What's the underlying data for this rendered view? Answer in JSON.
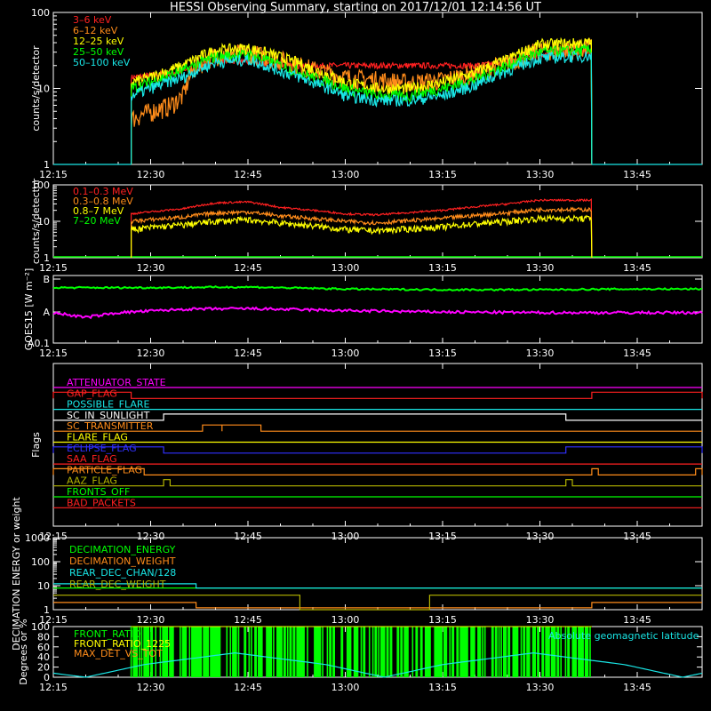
{
  "title": "HESSI Observing Summary, starting on 2017/12/01 12:14:56 UT",
  "colors": {
    "red": "#ff2020",
    "orange": "#ff8c1a",
    "yellow": "#ffff00",
    "green": "#00ff00",
    "cyan": "#19e6e6",
    "magenta": "#ff00ff",
    "blue": "#3030ff",
    "olive": "#b4b400",
    "white": "#ffffff"
  },
  "time_axis": {
    "start": "12:15",
    "end": "13:55",
    "ticks": [
      "12:15",
      "12:30",
      "12:45",
      "13:00",
      "13:15",
      "13:30",
      "13:45"
    ]
  },
  "chart_data": [
    {
      "type": "line",
      "ylabel": "counts/s/detector",
      "yscale": "log",
      "ylim": [
        1,
        100
      ],
      "yticks": [
        "1",
        "10",
        "100"
      ],
      "legend_placement": "top-left",
      "data_start": "12:27",
      "data_end": "13:38",
      "series": [
        {
          "name": "3–6 keV",
          "color": "red",
          "x": [
            "12:27",
            "12:33",
            "12:37",
            "12:40",
            "12:45",
            "12:50",
            "13:00",
            "13:15",
            "13:20",
            "13:25",
            "13:30",
            "13:38"
          ],
          "y": [
            14,
            16,
            18,
            24,
            22,
            20,
            20,
            20,
            20,
            22,
            28,
            30
          ]
        },
        {
          "name": "6–12 keV",
          "color": "orange",
          "x": [
            "12:27",
            "12:30",
            "12:33",
            "12:35",
            "12:37",
            "12:40",
            "12:45",
            "12:50",
            "12:55",
            "13:00",
            "13:10",
            "13:15",
            "13:20",
            "13:25",
            "13:30",
            "13:38"
          ],
          "y": [
            4,
            5,
            6,
            8,
            20,
            28,
            30,
            24,
            18,
            14,
            12,
            13,
            16,
            22,
            32,
            35
          ]
        },
        {
          "name": "12–25 keV",
          "color": "yellow",
          "x": [
            "12:27",
            "12:30",
            "12:35",
            "12:40",
            "12:45",
            "12:50",
            "12:55",
            "13:00",
            "13:05",
            "13:10",
            "13:15",
            "13:20",
            "13:25",
            "13:30",
            "13:38"
          ],
          "y": [
            12,
            14,
            20,
            32,
            34,
            26,
            18,
            12,
            10,
            10,
            12,
            16,
            24,
            38,
            40
          ]
        },
        {
          "name": "25–50 keV",
          "color": "green",
          "x": [
            "12:27",
            "12:30",
            "12:35",
            "12:40",
            "12:45",
            "12:50",
            "12:55",
            "13:00",
            "13:05",
            "13:10",
            "13:15",
            "13:20",
            "13:25",
            "13:30",
            "13:38"
          ],
          "y": [
            10,
            12,
            17,
            26,
            28,
            20,
            14,
            10,
            8,
            8,
            10,
            13,
            20,
            30,
            32
          ]
        },
        {
          "name": "50–100 keV",
          "color": "cyan",
          "x": [
            "12:27",
            "12:30",
            "12:35",
            "12:40",
            "12:45",
            "12:50",
            "12:55",
            "13:00",
            "13:05",
            "13:10",
            "13:15",
            "13:20",
            "13:25",
            "13:30",
            "13:38"
          ],
          "y": [
            8,
            10,
            14,
            22,
            24,
            17,
            12,
            8,
            7,
            7,
            8,
            11,
            17,
            25,
            27
          ]
        }
      ]
    },
    {
      "type": "line",
      "ylabel": "counts/s/detector",
      "yscale": "log",
      "ylim": [
        1,
        100
      ],
      "yticks": [
        "1",
        "10",
        "100"
      ],
      "legend_placement": "top-left",
      "data_start": "12:27",
      "data_end": "13:38",
      "series": [
        {
          "name": "0.1–0.3 MeV",
          "color": "red",
          "x": [
            "12:27",
            "12:35",
            "12:40",
            "12:45",
            "12:50",
            "13:00",
            "13:05",
            "13:15",
            "13:25",
            "13:30",
            "13:38"
          ],
          "y": [
            16,
            22,
            32,
            34,
            24,
            16,
            15,
            20,
            30,
            38,
            38
          ]
        },
        {
          "name": "0.3–0.8 MeV",
          "color": "orange",
          "x": [
            "12:27",
            "12:35",
            "12:40",
            "12:45",
            "12:50",
            "13:00",
            "13:05",
            "13:15",
            "13:25",
            "13:30",
            "13:38"
          ],
          "y": [
            10,
            13,
            17,
            18,
            14,
            10,
            9,
            12,
            17,
            21,
            21
          ]
        },
        {
          "name": "0.8–7 MeV",
          "color": "yellow",
          "x": [
            "12:27",
            "12:35",
            "12:40",
            "12:45",
            "12:50",
            "13:00",
            "13:05",
            "13:15",
            "13:25",
            "13:30",
            "13:38"
          ],
          "y": [
            6,
            8,
            10,
            11,
            9,
            6,
            5.5,
            7,
            10,
            12,
            12
          ]
        },
        {
          "name": "7–20 MeV",
          "color": "green",
          "x": [
            "12:15",
            "13:55"
          ],
          "y": [
            1,
            1
          ]
        }
      ]
    },
    {
      "type": "line",
      "ylabel": "GOES15 [W m⁻²]",
      "yscale": "log",
      "yticks": [
        "A0.1",
        "A",
        "B"
      ],
      "series": [
        {
          "name": "GOES long",
          "color": "green",
          "x": [
            "12:15",
            "12:30",
            "12:45",
            "13:00",
            "13:15",
            "13:30",
            "13:45",
            "13:55"
          ],
          "y": [
            0.82,
            0.82,
            0.83,
            0.8,
            0.79,
            0.79,
            0.8,
            0.8
          ]
        },
        {
          "name": "GOES short",
          "color": "magenta",
          "x": [
            "12:15",
            "12:20",
            "12:25",
            "12:35",
            "12:45",
            "13:00",
            "13:15",
            "13:30",
            "13:45",
            "13:55"
          ],
          "y": [
            0.45,
            0.38,
            0.45,
            0.5,
            0.51,
            0.48,
            0.46,
            0.45,
            0.45,
            0.45
          ]
        }
      ]
    },
    {
      "type": "line",
      "ylabel": "Flags",
      "flags": [
        {
          "name": "ATTENUATOR_STATE",
          "color": "magenta",
          "on": []
        },
        {
          "name": "GAP_FLAG",
          "color": "red",
          "on": [
            [
              "12:15",
              "12:27"
            ],
            [
              "13:38",
              "13:55"
            ]
          ]
        },
        {
          "name": "POSSIBLE_FLARE",
          "color": "cyan",
          "on": []
        },
        {
          "name": "SC_IN_SUNLIGHT",
          "color": "white",
          "on": [
            [
              "12:32",
              "13:34"
            ]
          ]
        },
        {
          "name": "SC_TRANSMITTER",
          "color": "orange",
          "on": [
            [
              "12:38",
              "12:41"
            ],
            [
              "12:41",
              "12:47"
            ]
          ]
        },
        {
          "name": "FLARE_FLAG",
          "color": "yellow",
          "on": []
        },
        {
          "name": "ECLIPSE_FLAG",
          "color": "blue",
          "on": [
            [
              "12:15",
              "12:32"
            ],
            [
              "13:34",
              "13:55"
            ]
          ]
        },
        {
          "name": "SAA_FLAG",
          "color": "red",
          "on": []
        },
        {
          "name": "PARTICLE_FLAG",
          "color": "orange",
          "on": [
            [
              "12:15",
              "12:29"
            ],
            [
              "13:38",
              "13:39"
            ],
            [
              "13:54",
              "13:55"
            ]
          ]
        },
        {
          "name": "AAZ_FLAG",
          "color": "olive",
          "on": [
            [
              "12:32",
              "12:33"
            ],
            [
              "13:34",
              "13:35"
            ]
          ]
        },
        {
          "name": "FRONTS_OFF",
          "color": "green",
          "on": []
        },
        {
          "name": "BAD_PACKETS",
          "color": "red",
          "on": []
        }
      ]
    },
    {
      "type": "line",
      "ylabel": "DECIMATION ENERGY or weight",
      "yscale": "log",
      "ylim": [
        1,
        1000
      ],
      "yticks": [
        "1",
        "10",
        "100",
        "1000"
      ],
      "legend_placement": "top-left",
      "series": [
        {
          "name": "DECIMATION_ENERGY",
          "color": "green",
          "x": [
            "12:15",
            "13:55"
          ],
          "y": [
            8,
            8
          ]
        },
        {
          "name": "DECIMATION_WEIGHT",
          "color": "orange",
          "x": [
            "12:15",
            "12:37",
            "12:37",
            "12:53",
            "12:53",
            "13:13",
            "13:13",
            "13:38",
            "13:38",
            "13:55"
          ],
          "y": [
            2,
            2,
            1.2,
            1.2,
            1.2,
            1.2,
            1.2,
            1.2,
            2,
            2
          ]
        },
        {
          "name": "REAR_DEC_CHAN/128",
          "color": "cyan",
          "x": [
            "12:15",
            "12:37",
            "12:37",
            "13:55"
          ],
          "y": [
            12,
            12,
            8,
            8
          ]
        },
        {
          "name": "REAR_DEC_WEIGHT",
          "color": "olive",
          "x": [
            "12:15",
            "12:37",
            "12:37",
            "12:53",
            "12:53",
            "13:13",
            "13:13",
            "13:38",
            "13:38",
            "13:55"
          ],
          "y": [
            4,
            4,
            4,
            4,
            1,
            1,
            4,
            4,
            4,
            4
          ]
        }
      ]
    },
    {
      "type": "line",
      "ylabel": "Degrees or %",
      "ylim": [
        0,
        100
      ],
      "yticks": [
        "0",
        "20",
        "40",
        "60",
        "80",
        "100"
      ],
      "legend_placement": "top-left",
      "annotation": "Absolute geomagnetic latitude",
      "series": [
        {
          "name": "FRONT_RATIO",
          "color": "green",
          "bars_from": "12:27",
          "bars_to": "13:38",
          "value": 100
        },
        {
          "name": "FRONT_RATIO_1225",
          "color": "yellow"
        },
        {
          "name": "MAX_DET_VS_TOT",
          "color": "orange"
        },
        {
          "name": "Absolute geomagnetic latitude",
          "color": "cyan",
          "x": [
            "12:15",
            "12:20",
            "12:29",
            "12:43",
            "12:57",
            "13:06",
            "13:15",
            "13:29",
            "13:43",
            "13:52",
            "13:55"
          ],
          "y": [
            8,
            0,
            25,
            48,
            25,
            0,
            25,
            48,
            25,
            0,
            8
          ]
        }
      ]
    }
  ]
}
